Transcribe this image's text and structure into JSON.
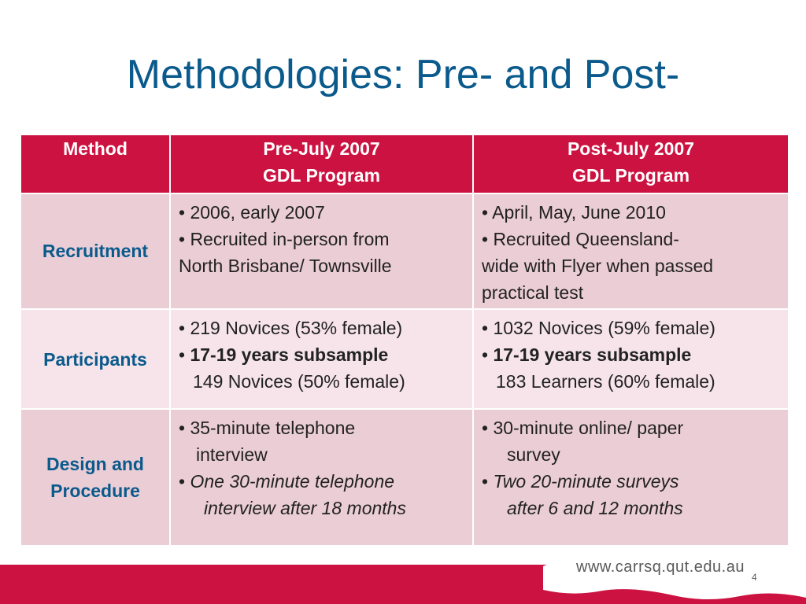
{
  "slide": {
    "title": "Methodologies: Pre- and Post-",
    "url": "www.carrsq.qut.edu.au",
    "page_number": "4"
  },
  "table": {
    "headers": {
      "method": "Method",
      "pre_line1": "Pre-July 2007",
      "pre_line2": "GDL Program",
      "post_line1": "Post-July 2007",
      "post_line2": "GDL Program"
    },
    "recruitment": {
      "label": "Recruitment",
      "pre": [
        "•  2006, early 2007",
        "•  Recruited in-person from",
        "North Brisbane/ Townsville"
      ],
      "post": [
        "•   April, May, June 2010",
        "•   Recruited Queensland-",
        "wide with Flyer when passed",
        "practical test"
      ]
    },
    "participants": {
      "label": "Participants",
      "pre_l1": "•  219 Novices (53% female)",
      "pre_bullet": "•  ",
      "pre_bold": "17-19 years subsample",
      "pre_l3": "149 Novices (50% female)",
      "post_l1": "•  1032 Novices (59% female)",
      "post_bullet": "•   ",
      "post_bold": "17-19 years subsample",
      "post_l3": "183 Learners (60% female)"
    },
    "design": {
      "label_l1": "Design and",
      "label_l2": "Procedure",
      "pre_l1": "•  35-minute telephone",
      "pre_l2": "interview",
      "pre_bullet": "•  ",
      "pre_italic1": "One 30-minute telephone",
      "pre_italic2": "interview after 18 months",
      "post_l1": "•   30-minute online/ paper",
      "post_l2": "survey",
      "post_bullet": "•   ",
      "post_italic1": "Two 20-minute surveys",
      "post_italic2": "after 6 and 12 months"
    }
  },
  "colors": {
    "title": "#0a5a8c",
    "header_bg": "#cc1240",
    "row_dark": "#ebcdd6",
    "row_light": "#f6e4ea"
  }
}
